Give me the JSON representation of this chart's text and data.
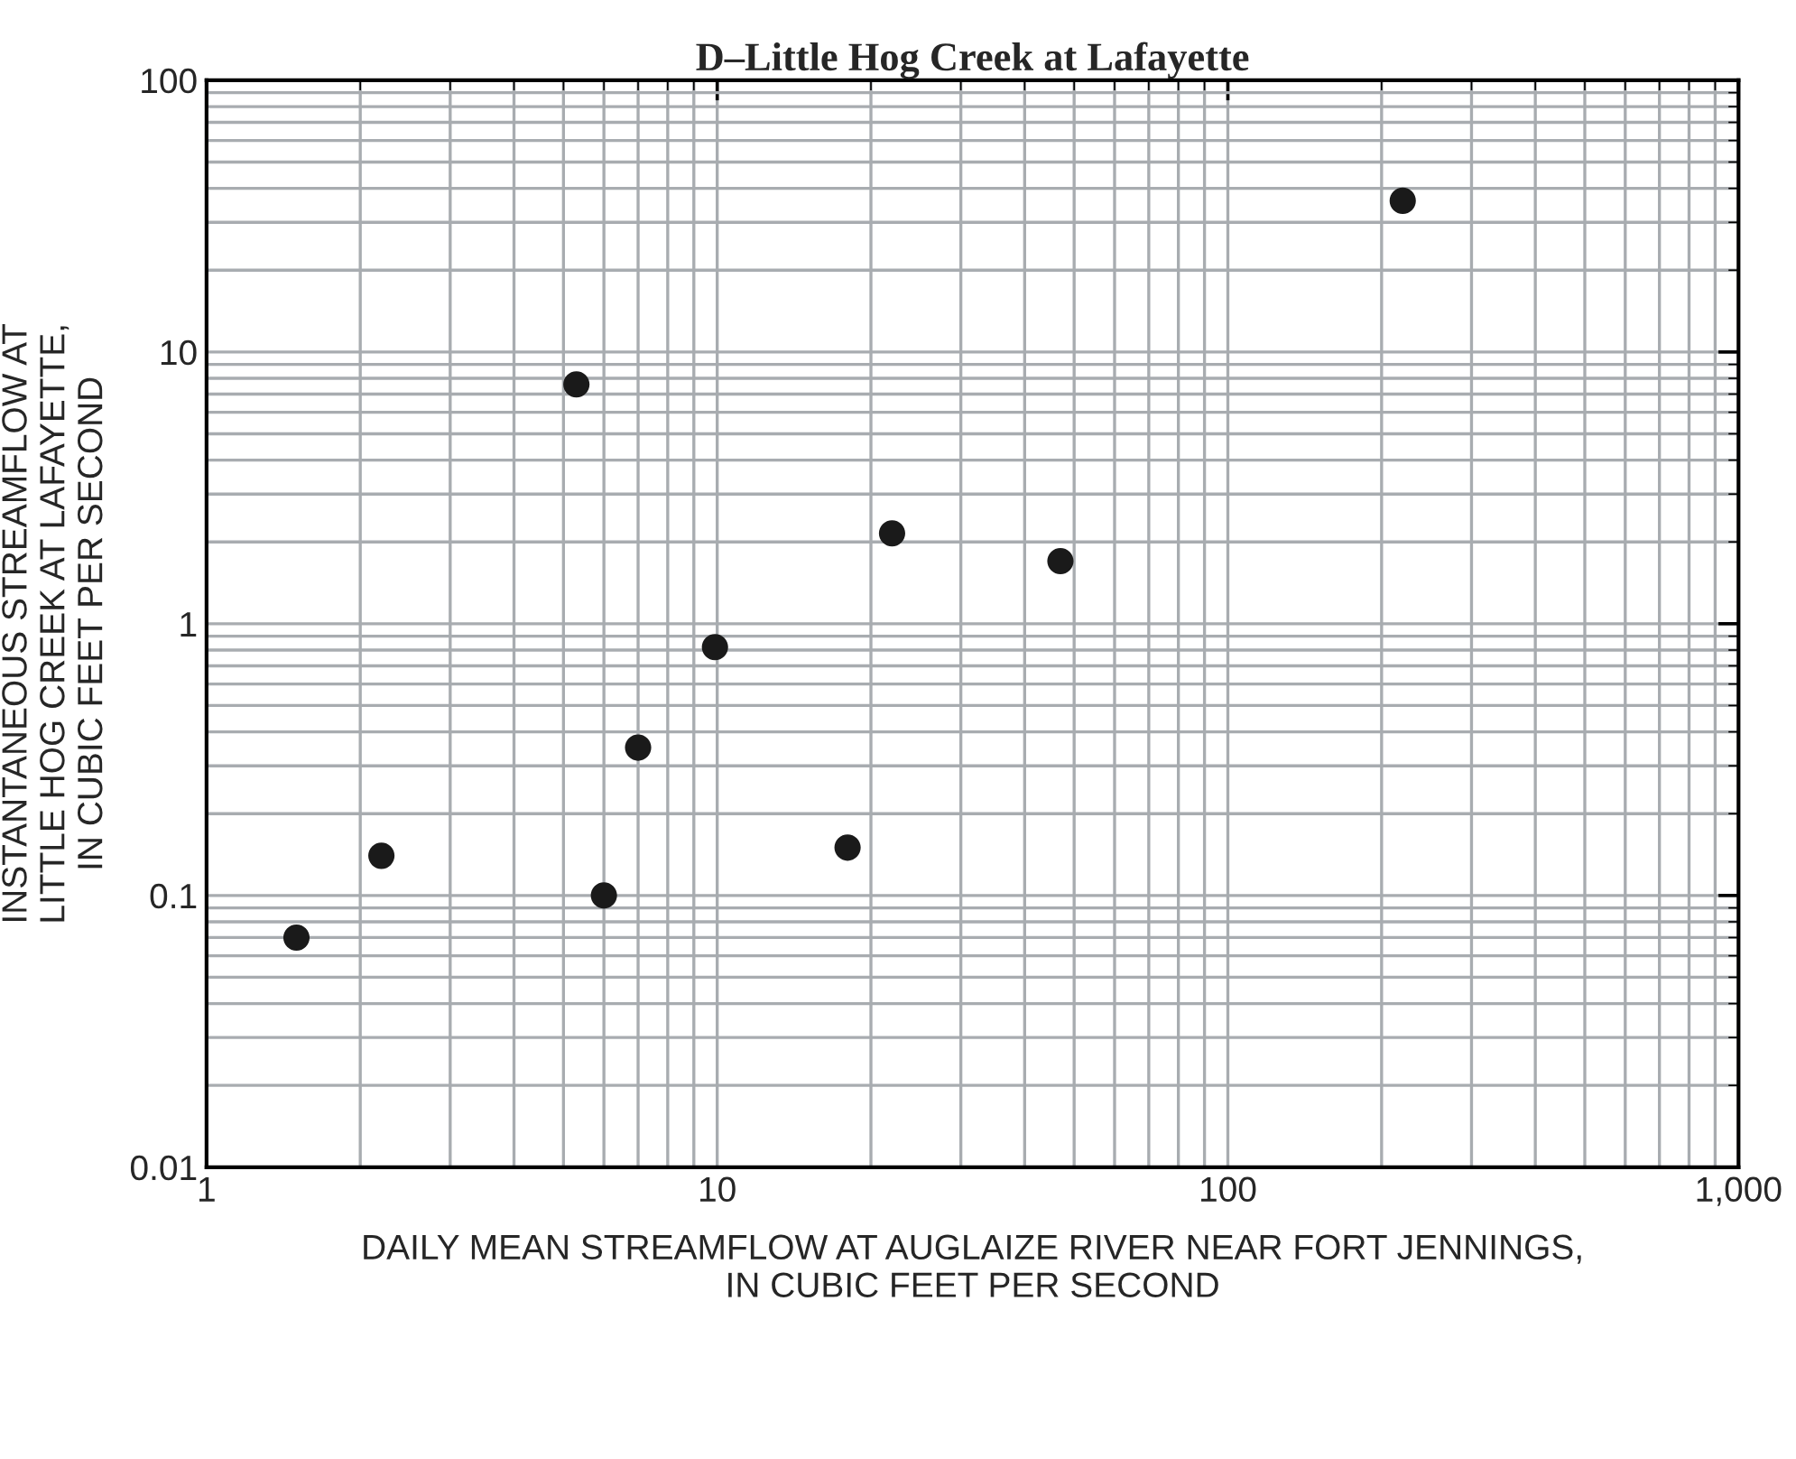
{
  "chart_data": {
    "type": "scatter",
    "title": "D–Little Hog Creek at Lafayette",
    "xlabel": "DAILY MEAN STREAMFLOW AT AUGLAIZE RIVER NEAR FORT JENNINGS,\nIN CUBIC FEET PER SECOND",
    "ylabel": "INSTANTANEOUS STREAMFLOW AT\nLITTLE HOG CREEK AT LAFAYETTE,\nIN CUBIC FEET PER SECOND",
    "x": [
      1.5,
      2.2,
      5.3,
      6.0,
      7.0,
      9.9,
      18,
      22,
      47,
      220
    ],
    "series": [
      {
        "color": "#1a1a1a",
        "values": [
          0.07,
          0.14,
          7.6,
          0.1,
          0.35,
          0.82,
          0.15,
          2.15,
          1.7,
          36
        ]
      }
    ],
    "marker": "circle",
    "log": "xy",
    "grid": true,
    "xlim": [
      1,
      1000
    ],
    "ylim": [
      0.01,
      100
    ],
    "xticks": [
      1,
      10,
      100,
      {
        "value": 1000,
        "label": "1,000"
      }
    ],
    "yticks": [
      0.01,
      0.1,
      1,
      10,
      100
    ]
  }
}
